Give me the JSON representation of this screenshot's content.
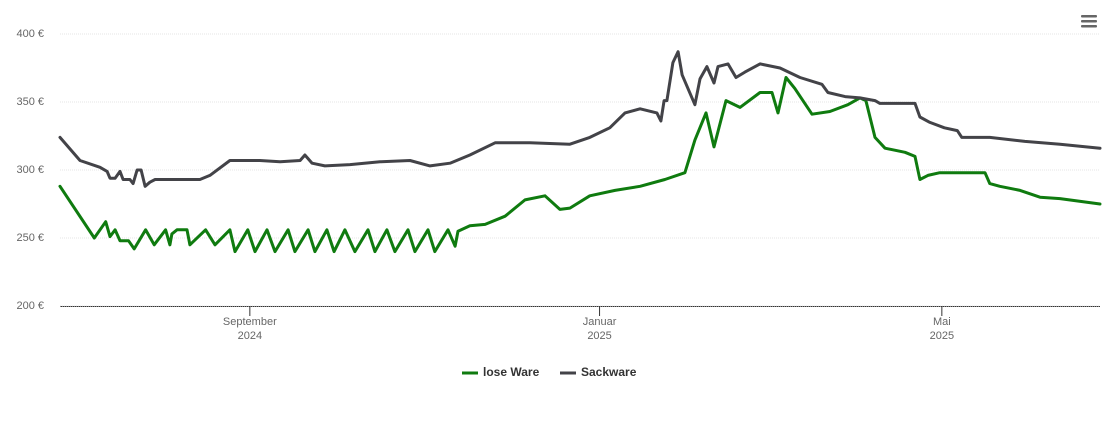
{
  "chart_data": {
    "type": "line",
    "xlim": [
      0,
      364.3
    ],
    "xticks": [
      {
        "value": 66.5,
        "label": [
          "September",
          "2024"
        ]
      },
      {
        "value": 189,
        "label": [
          "Januar",
          "2025"
        ]
      },
      {
        "value": 308.9,
        "label": [
          "Mai",
          "2025"
        ]
      }
    ],
    "ylim": [
      200,
      400
    ],
    "yticks": [
      {
        "value": 200,
        "label": "200 €"
      },
      {
        "value": 250,
        "label": "250 €"
      },
      {
        "value": 300,
        "label": "300 €"
      },
      {
        "value": 350,
        "label": "350 €"
      },
      {
        "value": 400,
        "label": "400 €"
      }
    ],
    "grid": true,
    "legend": "bottom",
    "series": [
      {
        "name": "lose Ware",
        "color": "#0f7b0f",
        "x": [
          0,
          12,
          16,
          17.5,
          19.3,
          21,
          24,
          26,
          30,
          33,
          37,
          38.5,
          39.2,
          41,
          44.5,
          45.5,
          51,
          54.3,
          59.5,
          61.3,
          65.8,
          68.3,
          72.5,
          75.3,
          79.9,
          82.3,
          86.9,
          89.3,
          93.5,
          96,
          99.8,
          103.3,
          107.9,
          110.3,
          114.5,
          117.3,
          121.9,
          124.3,
          128.9,
          131.3,
          135.9,
          138.4,
          139.4,
          143.6,
          148.9,
          155.9,
          162.9,
          169.9,
          175.1,
          178.6,
          185.6,
          194.4,
          203.2,
          211.9,
          218.9,
          222.4,
          226.3,
          229.1,
          233.3,
          238.2,
          245.2,
          249.4,
          251.5,
          254.3,
          257.4,
          263.4,
          269.7,
          276,
          280.2,
          282.3,
          285.5,
          289,
          296,
          299.5,
          301.2,
          304,
          308.2,
          324,
          325.7,
          329.2,
          336.3,
          343.3,
          350.3,
          364.3
        ],
        "values": [
          288,
          250,
          262,
          251,
          256,
          248,
          248,
          242,
          256,
          245,
          256,
          245,
          253,
          256,
          256,
          245,
          256,
          245,
          256,
          240,
          256,
          240,
          256,
          240,
          256,
          240,
          256,
          240,
          256,
          240,
          256,
          240,
          256,
          240,
          256,
          240,
          256,
          240,
          256,
          240,
          256,
          244,
          255,
          259,
          260,
          266,
          278,
          281,
          271,
          272,
          281,
          285,
          288,
          293,
          298,
          322,
          342,
          317,
          351,
          346,
          357,
          357,
          342,
          368,
          360,
          341,
          343,
          348,
          353,
          351,
          324,
          316,
          313,
          310,
          293,
          296,
          298,
          298,
          290,
          288,
          285,
          280,
          279,
          275
        ]
      },
      {
        "name": "Sackware",
        "color": "#434348",
        "x": [
          0,
          7,
          14,
          16.5,
          17.5,
          19.3,
          21,
          22.1,
          24.5,
          25.6,
          27,
          28.4,
          29.8,
          31.5,
          33.3,
          38.5,
          49,
          52.5,
          59.5,
          70,
          77.1,
          84.1,
          85.8,
          88.3,
          92.8,
          101.6,
          112.1,
          122.6,
          129.6,
          136.6,
          143.6,
          152.4,
          164.6,
          178.6,
          185.6,
          192.6,
          197.9,
          203.2,
          209.1,
          210.5,
          211.6,
          212.6,
          214.7,
          216.5,
          217.9,
          222.4,
          224.2,
          226.6,
          229.1,
          230.5,
          234,
          236.8,
          239.9,
          245.2,
          252.2,
          259.2,
          266.9,
          269,
          275,
          280.2,
          285.5,
          287.2,
          299.5,
          301.2,
          304.7,
          309.8,
          314.3,
          315.9,
          325.7,
          338,
          350.3,
          364.3
        ],
        "values": [
          324,
          307,
          302,
          299,
          294,
          294,
          299,
          293,
          293,
          290,
          300,
          300,
          288,
          291,
          293,
          293,
          293,
          296,
          307,
          307,
          306,
          307,
          311,
          305,
          303,
          304,
          306,
          307,
          303,
          305,
          311,
          320,
          320,
          319,
          324,
          331,
          342,
          345,
          342,
          336,
          351,
          351,
          379,
          387,
          370,
          348,
          367,
          376,
          364,
          376,
          378,
          368,
          372,
          378,
          375,
          368,
          363,
          357,
          354,
          353,
          351,
          349,
          349,
          339,
          335,
          331,
          329,
          324,
          324,
          321,
          319,
          316
        ]
      }
    ]
  }
}
